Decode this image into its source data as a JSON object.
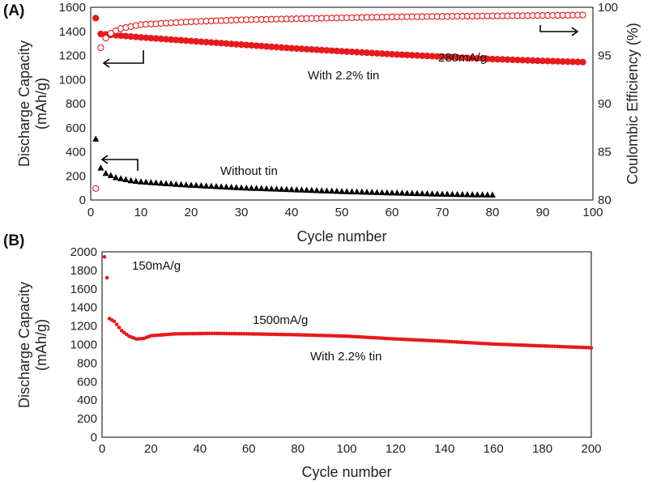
{
  "panels": [
    {
      "label": "(A)",
      "xlabel": "Cycle number",
      "ylabel_line1": "Discharge Capacity",
      "ylabel_line2": "(mAh/g)",
      "y2label": "Coulombic Efficiency (%)",
      "annotations": {
        "rate": "280mA/g",
        "with_tin": "With 2.2% tin",
        "without_tin": "Without tin"
      }
    },
    {
      "label": "(B)",
      "xlabel": "Cycle number",
      "ylabel_line1": "Discharge Capacity",
      "ylabel_line2": "(mAh/g)",
      "annotations": {
        "rate_low": "150mA/g",
        "rate_high": "1500mA/g",
        "with_tin": "With 2.2% tin"
      }
    }
  ],
  "chart_data": [
    {
      "type": "scatter",
      "xlim": [
        0,
        100
      ],
      "x_ticks": [
        0,
        10,
        20,
        30,
        40,
        50,
        60,
        70,
        80,
        90,
        100
      ],
      "ylim": [
        0,
        1600
      ],
      "y_ticks": [
        0,
        200,
        400,
        600,
        800,
        1000,
        1200,
        1400,
        1600
      ],
      "y2lim": [
        80,
        100
      ],
      "y2_ticks": [
        80,
        85,
        90,
        95,
        100
      ],
      "series": [
        {
          "axis": "left",
          "marker": "filled-circle",
          "color": "#e8191c",
          "x": [
            1,
            2,
            3,
            5,
            10,
            20,
            30,
            40,
            50,
            60,
            70,
            80,
            90,
            98
          ],
          "y": [
            1510,
            1378,
            1375,
            1368,
            1350,
            1320,
            1290,
            1260,
            1235,
            1210,
            1190,
            1170,
            1155,
            1145
          ]
        },
        {
          "axis": "right",
          "marker": "open-circle",
          "color": "#e8191c",
          "x": [
            1,
            2,
            3,
            4,
            6,
            10,
            20,
            30,
            40,
            50,
            60,
            70,
            80,
            90,
            98
          ],
          "y": [
            81.2,
            95.8,
            96.8,
            97.3,
            97.8,
            98.2,
            98.5,
            98.7,
            98.8,
            98.9,
            99.0,
            99.05,
            99.1,
            99.15,
            99.2
          ]
        },
        {
          "axis": "left",
          "marker": "triangle",
          "color": "#000000",
          "x": [
            1,
            2,
            3,
            5,
            8,
            10,
            15,
            20,
            30,
            40,
            50,
            60,
            70,
            80
          ],
          "y": [
            505,
            265,
            220,
            185,
            160,
            150,
            135,
            122,
            100,
            85,
            70,
            58,
            48,
            40
          ]
        }
      ]
    },
    {
      "type": "scatter",
      "xlim": [
        0,
        200
      ],
      "x_ticks": [
        0,
        20,
        40,
        60,
        80,
        100,
        120,
        140,
        160,
        180,
        200
      ],
      "ylim": [
        0,
        2000
      ],
      "y_ticks": [
        0,
        200,
        400,
        600,
        800,
        1000,
        1200,
        1400,
        1600,
        1800,
        2000
      ],
      "series": [
        {
          "axis": "left",
          "marker": "filled-circle-small",
          "color": "#e8191c",
          "x": [
            1,
            2
          ],
          "y": [
            1945,
            1720
          ]
        },
        {
          "axis": "left",
          "marker": "filled-circle-small",
          "color": "#e8191c",
          "x": [
            3,
            5,
            8,
            11,
            14,
            17,
            20,
            30,
            45,
            60,
            80,
            100,
            120,
            140,
            160,
            180,
            200
          ],
          "y": [
            1280,
            1250,
            1150,
            1090,
            1060,
            1065,
            1095,
            1115,
            1120,
            1115,
            1105,
            1090,
            1060,
            1035,
            1005,
            985,
            965
          ]
        }
      ]
    }
  ]
}
